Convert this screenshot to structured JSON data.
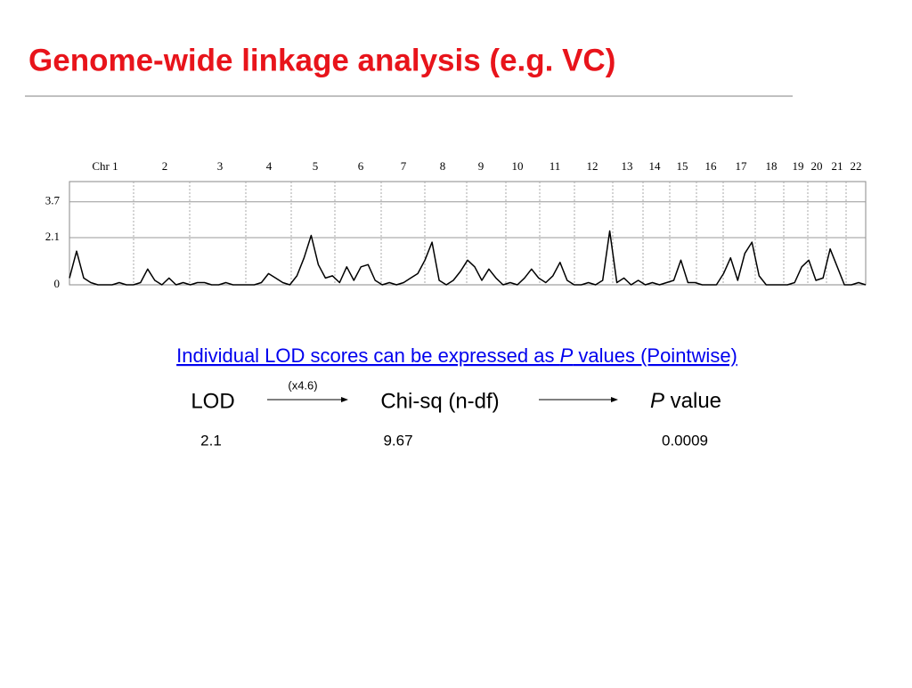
{
  "title": "Genome-wide linkage analysis (e.g. VC)",
  "chart_data": {
    "type": "line",
    "chromosomes": [
      "Chr 1",
      "2",
      "3",
      "4",
      "5",
      "6",
      "7",
      "8",
      "9",
      "10",
      "11",
      "12",
      "13",
      "14",
      "15",
      "16",
      "17",
      "18",
      "19",
      "20",
      "21",
      "22"
    ],
    "values": [
      0.3,
      1.5,
      0.3,
      0.1,
      0,
      0,
      0,
      0.1,
      0,
      0,
      0.1,
      0.7,
      0.2,
      0,
      0.3,
      0,
      0.1,
      0,
      0.1,
      0.1,
      0,
      0,
      0.1,
      0,
      0,
      0,
      0,
      0.1,
      0.5,
      0.3,
      0.1,
      0,
      0.4,
      1.2,
      2.2,
      0.9,
      0.3,
      0.4,
      0.1,
      0.8,
      0.2,
      0.8,
      0.9,
      0.2,
      0,
      0.1,
      0,
      0.1,
      0.3,
      0.5,
      1.1,
      1.9,
      0.2,
      0,
      0.2,
      0.6,
      1.1,
      0.8,
      0.2,
      0.7,
      0.3,
      0,
      0.1,
      0,
      0.3,
      0.7,
      0.3,
      0.1,
      0.4,
      1.0,
      0.2,
      0,
      0,
      0.1,
      0,
      0.2,
      2.4,
      0.1,
      0.3,
      0,
      0.2,
      0,
      0.1,
      0,
      0.1,
      0.2,
      1.1,
      0.1,
      0.1,
      0,
      0,
      0,
      0.5,
      1.2,
      0.2,
      1.4,
      1.9,
      0.4,
      0,
      0,
      0,
      0,
      0.1,
      0.8,
      1.1,
      0.2,
      0.3,
      1.6,
      0.8,
      0,
      0,
      0.1,
      0
    ],
    "color": "#000000",
    "ylim": [
      0,
      4.6
    ],
    "yticks": [
      0,
      2.1,
      3.7
    ],
    "grid": true
  },
  "heading": {
    "before": "Individual LOD scores can be expressed as ",
    "italic": "P",
    "after": " values (Pointwise)"
  },
  "flow": {
    "lod": "LOD",
    "factor": "(x4.6)",
    "chisq": "Chi-sq (n-df)",
    "p_italic": "P",
    "p_rest": " value",
    "lod_value": "2.1",
    "chisq_value": "9.67",
    "p_value": "0.0009"
  }
}
